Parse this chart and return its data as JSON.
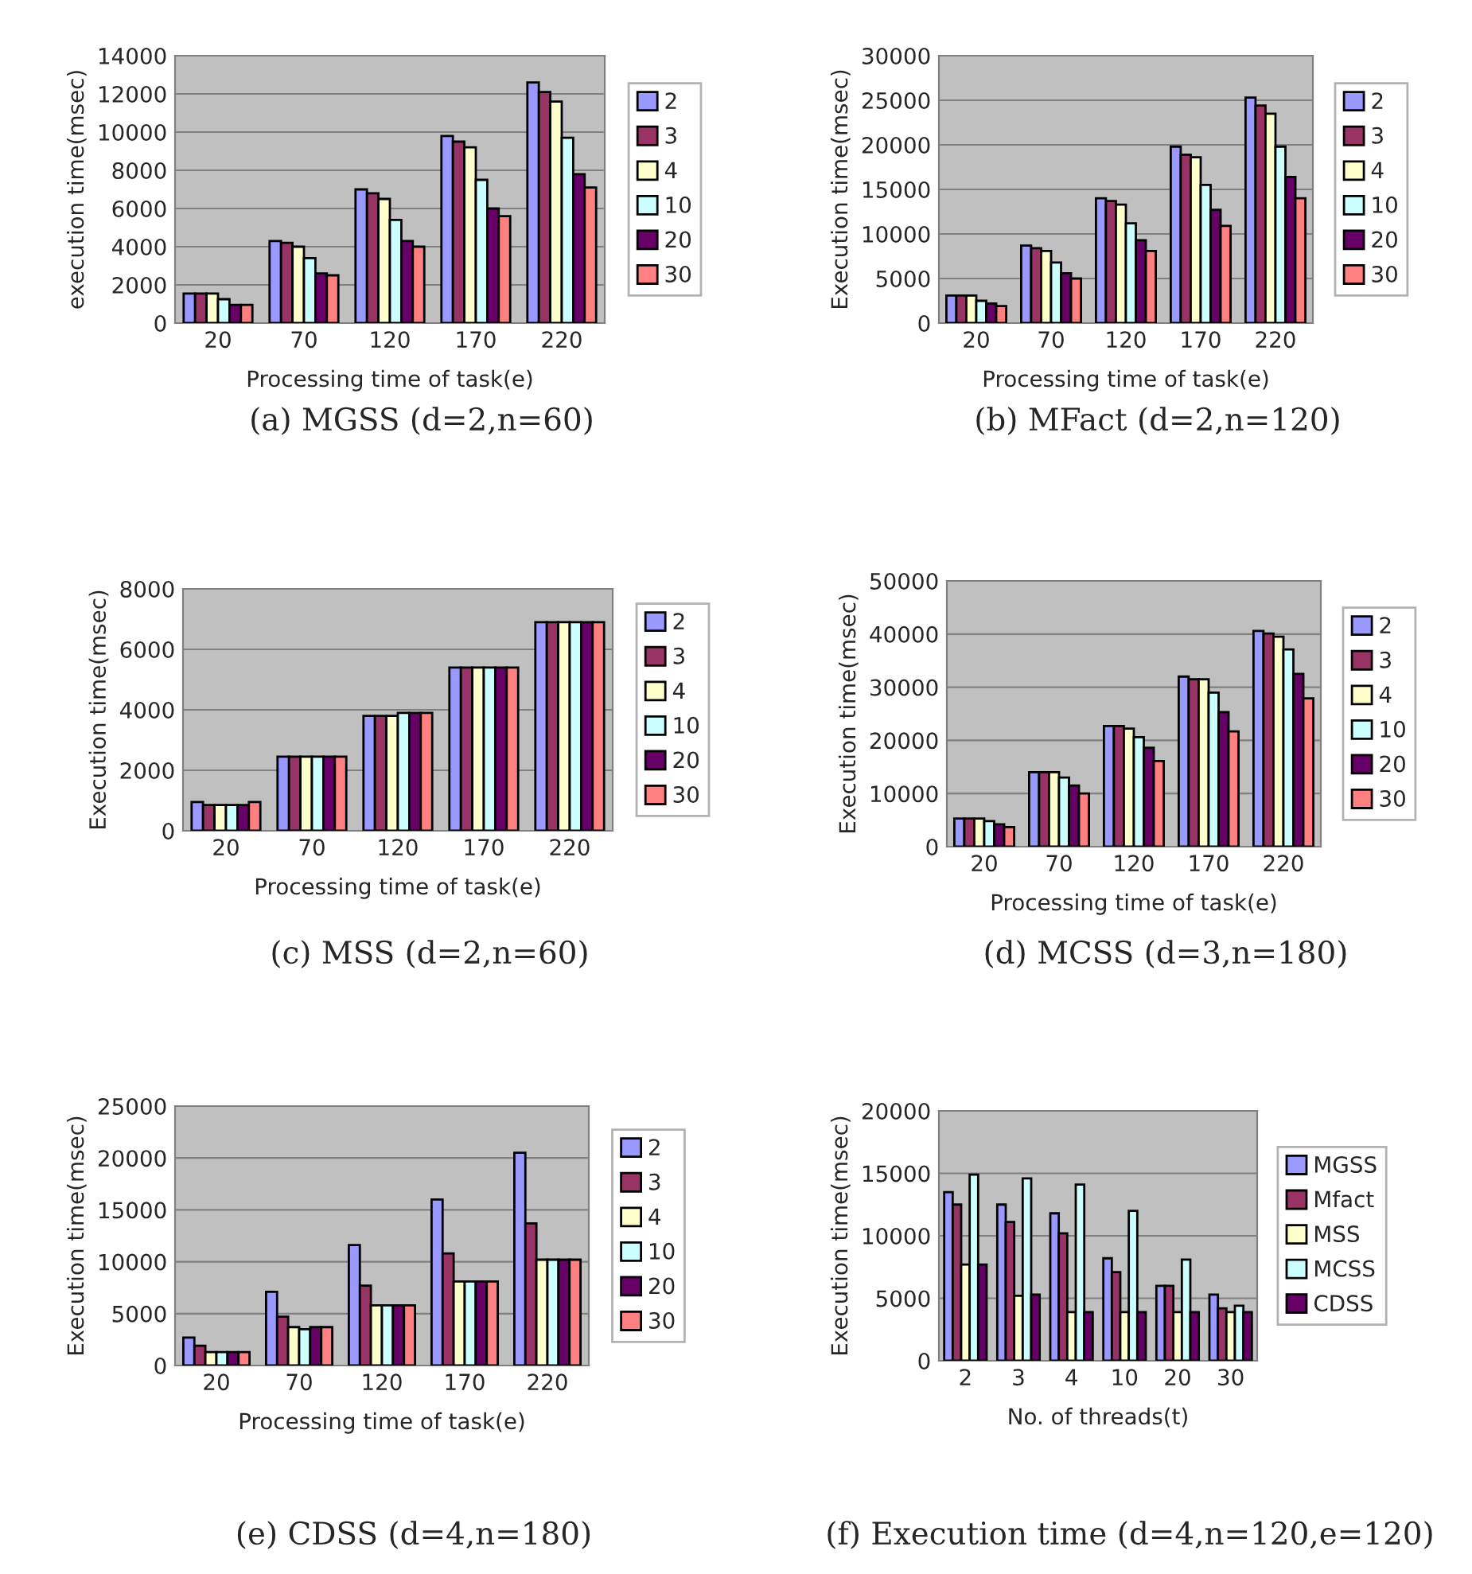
{
  "chart_data": [
    {
      "type": "bar",
      "title": "(a) MGSS (d=2,n=60)",
      "xlabel": "Processing time of task(e)",
      "ylabel": "execution time(msec)",
      "categories": [
        "20",
        "70",
        "120",
        "170",
        "220"
      ],
      "ylim": [
        0,
        14000
      ],
      "yticks": [
        0,
        2000,
        4000,
        6000,
        8000,
        10000,
        12000,
        14000
      ],
      "grid": "y",
      "legend": "right",
      "series": [
        {
          "name": "2",
          "color": "#9999ff",
          "values": [
            1550,
            4300,
            7000,
            9800,
            12600
          ]
        },
        {
          "name": "3",
          "color": "#993366",
          "values": [
            1550,
            4200,
            6800,
            9500,
            12100
          ]
        },
        {
          "name": "4",
          "color": "#ffffcc",
          "values": [
            1550,
            4000,
            6500,
            9200,
            11600
          ]
        },
        {
          "name": "10",
          "color": "#ccffff",
          "values": [
            1250,
            3400,
            5400,
            7500,
            9700
          ]
        },
        {
          "name": "20",
          "color": "#660066",
          "values": [
            950,
            2600,
            4300,
            6000,
            7800
          ]
        },
        {
          "name": "30",
          "color": "#ff8080",
          "values": [
            950,
            2500,
            4000,
            5600,
            7100
          ]
        }
      ]
    },
    {
      "type": "bar",
      "title": "(b) MFact (d=2,n=120)",
      "xlabel": "Processing time of task(e)",
      "ylabel": "Execution time(msec)",
      "categories": [
        "20",
        "70",
        "120",
        "170",
        "220"
      ],
      "ylim": [
        0,
        30000
      ],
      "yticks": [
        0,
        5000,
        10000,
        15000,
        20000,
        25000,
        30000
      ],
      "grid": "y",
      "legend": "right",
      "series": [
        {
          "name": "2",
          "color": "#9999ff",
          "values": [
            3100,
            8700,
            14000,
            19800,
            25300
          ]
        },
        {
          "name": "3",
          "color": "#993366",
          "values": [
            3100,
            8400,
            13700,
            18900,
            24400
          ]
        },
        {
          "name": "4",
          "color": "#ffffcc",
          "values": [
            3100,
            8100,
            13300,
            18600,
            23500
          ]
        },
        {
          "name": "10",
          "color": "#ccffff",
          "values": [
            2500,
            6800,
            11200,
            15500,
            19800
          ]
        },
        {
          "name": "20",
          "color": "#660066",
          "values": [
            2200,
            5600,
            9300,
            12700,
            16400
          ]
        },
        {
          "name": "30",
          "color": "#ff8080",
          "values": [
            1900,
            5000,
            8100,
            10900,
            14000
          ]
        }
      ]
    },
    {
      "type": "bar",
      "title": "(c) MSS (d=2,n=60)",
      "xlabel": "Processing time of task(e)",
      "ylabel": "Execution time(msec)",
      "categories": [
        "20",
        "70",
        "120",
        "170",
        "220"
      ],
      "ylim": [
        0,
        8000
      ],
      "yticks": [
        0,
        2000,
        4000,
        6000,
        8000
      ],
      "grid": "y",
      "legend": "right",
      "series": [
        {
          "name": "2",
          "color": "#9999ff",
          "values": [
            950,
            2450,
            3800,
            5400,
            6900
          ]
        },
        {
          "name": "3",
          "color": "#993366",
          "values": [
            850,
            2450,
            3800,
            5400,
            6900
          ]
        },
        {
          "name": "4",
          "color": "#ffffcc",
          "values": [
            850,
            2450,
            3800,
            5400,
            6900
          ]
        },
        {
          "name": "10",
          "color": "#ccffff",
          "values": [
            850,
            2450,
            3900,
            5400,
            6900
          ]
        },
        {
          "name": "20",
          "color": "#660066",
          "values": [
            850,
            2450,
            3900,
            5400,
            6900
          ]
        },
        {
          "name": "30",
          "color": "#ff8080",
          "values": [
            950,
            2450,
            3900,
            5400,
            6900
          ]
        }
      ]
    },
    {
      "type": "bar",
      "title": "(d) MCSS (d=3,n=180)",
      "xlabel": "Processing time of task(e)",
      "ylabel": "Execution time(msec)",
      "categories": [
        "20",
        "70",
        "120",
        "170",
        "220"
      ],
      "ylim": [
        0,
        50000
      ],
      "yticks": [
        0,
        10000,
        20000,
        30000,
        40000,
        50000
      ],
      "grid": "y",
      "legend": "right",
      "series": [
        {
          "name": "2",
          "color": "#9999ff",
          "values": [
            5300,
            14000,
            22700,
            32000,
            40600
          ]
        },
        {
          "name": "3",
          "color": "#993366",
          "values": [
            5300,
            14000,
            22700,
            31500,
            40100
          ]
        },
        {
          "name": "4",
          "color": "#ffffcc",
          "values": [
            5300,
            14000,
            22200,
            31500,
            39500
          ]
        },
        {
          "name": "10",
          "color": "#ccffff",
          "values": [
            4800,
            13000,
            20600,
            29000,
            37100
          ]
        },
        {
          "name": "20",
          "color": "#660066",
          "values": [
            4200,
            11500,
            18600,
            25300,
            32500
          ]
        },
        {
          "name": "30",
          "color": "#ff8080",
          "values": [
            3700,
            10000,
            16100,
            21700,
            27900
          ]
        }
      ]
    },
    {
      "type": "bar",
      "title": "(e) CDSS (d=4,n=180)",
      "xlabel": "Processing time of task(e)",
      "ylabel": "Execution time(msec)",
      "categories": [
        "20",
        "70",
        "120",
        "170",
        "220"
      ],
      "ylim": [
        0,
        25000
      ],
      "yticks": [
        0,
        5000,
        10000,
        15000,
        20000,
        25000
      ],
      "grid": "y",
      "legend": "right",
      "series": [
        {
          "name": "2",
          "color": "#9999ff",
          "values": [
            2700,
            7100,
            11600,
            16000,
            20500
          ]
        },
        {
          "name": "3",
          "color": "#993366",
          "values": [
            1900,
            4700,
            7700,
            10800,
            13700
          ]
        },
        {
          "name": "4",
          "color": "#ffffcc",
          "values": [
            1300,
            3700,
            5800,
            8100,
            10200
          ]
        },
        {
          "name": "10",
          "color": "#ccffff",
          "values": [
            1300,
            3500,
            5800,
            8100,
            10200
          ]
        },
        {
          "name": "20",
          "color": "#660066",
          "values": [
            1300,
            3700,
            5800,
            8100,
            10200
          ]
        },
        {
          "name": "30",
          "color": "#ff8080",
          "values": [
            1300,
            3700,
            5800,
            8100,
            10200
          ]
        }
      ]
    },
    {
      "type": "bar",
      "title": "(f) Execution time (d=4,n=120,e=120)",
      "xlabel": "No. of threads(t)",
      "ylabel": "Execution time(msec)",
      "categories": [
        "2",
        "3",
        "4",
        "10",
        "20",
        "30"
      ],
      "ylim": [
        0,
        20000
      ],
      "yticks": [
        0,
        5000,
        10000,
        15000,
        20000
      ],
      "grid": "y",
      "legend": "right",
      "series": [
        {
          "name": "MGSS",
          "color": "#9999ff",
          "values": [
            13500,
            12500,
            11800,
            8200,
            6000,
            5300
          ]
        },
        {
          "name": "Mfact",
          "color": "#993366",
          "values": [
            12500,
            11100,
            10200,
            7100,
            6000,
            4200
          ]
        },
        {
          "name": "MSS",
          "color": "#ffffcc",
          "values": [
            7700,
            5200,
            3900,
            3900,
            3900,
            3900
          ]
        },
        {
          "name": "MCSS",
          "color": "#ccffff",
          "values": [
            14900,
            14600,
            14100,
            12000,
            8100,
            4400
          ]
        },
        {
          "name": "CDSS",
          "color": "#660066",
          "values": [
            7700,
            5300,
            3900,
            3900,
            3900,
            3900
          ]
        }
      ]
    }
  ]
}
